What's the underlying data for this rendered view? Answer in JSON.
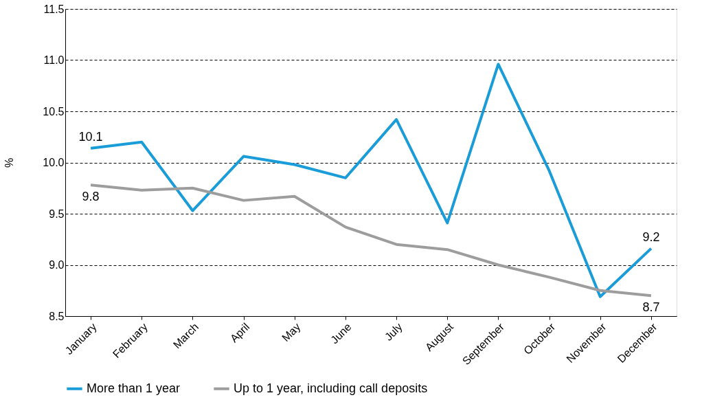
{
  "chart_data": {
    "type": "line",
    "ylabel": "%",
    "categories": [
      "January",
      "February",
      "March",
      "April",
      "May",
      "June",
      "July",
      "August",
      "September",
      "October",
      "November",
      "December"
    ],
    "series": [
      {
        "name": "More than 1 year",
        "color": "#1a9cd8",
        "values": [
          10.14,
          10.2,
          9.53,
          10.06,
          9.98,
          9.85,
          10.42,
          9.41,
          10.96,
          9.92,
          8.69,
          9.16
        ],
        "value_labels": [
          "10.1",
          null,
          null,
          null,
          null,
          null,
          null,
          null,
          null,
          null,
          null,
          "9.2"
        ]
      },
      {
        "name": "Up to 1 year, including call deposits",
        "color": "#9d9d9d",
        "values": [
          9.78,
          9.73,
          9.75,
          9.63,
          9.67,
          9.37,
          9.2,
          9.15,
          9.0,
          8.88,
          8.75,
          8.7
        ],
        "value_labels": [
          "9.8",
          null,
          null,
          null,
          null,
          null,
          null,
          null,
          null,
          null,
          null,
          "8.7"
        ]
      }
    ],
    "ylim": [
      8.5,
      11.5
    ],
    "yticks": [
      {
        "value": 8.5,
        "label": "8.5"
      },
      {
        "value": 9,
        "label": "9.0"
      },
      {
        "value": 9.5,
        "label": "9.5"
      },
      {
        "value": 10,
        "label": "10.0"
      },
      {
        "value": 10.5,
        "label": "10.5"
      },
      {
        "value": 11,
        "label": "11.0"
      },
      {
        "value": 11.5,
        "label": "11.5"
      }
    ],
    "grid": "y",
    "legend": "bottom",
    "marker": "none",
    "line_style": "solid"
  }
}
